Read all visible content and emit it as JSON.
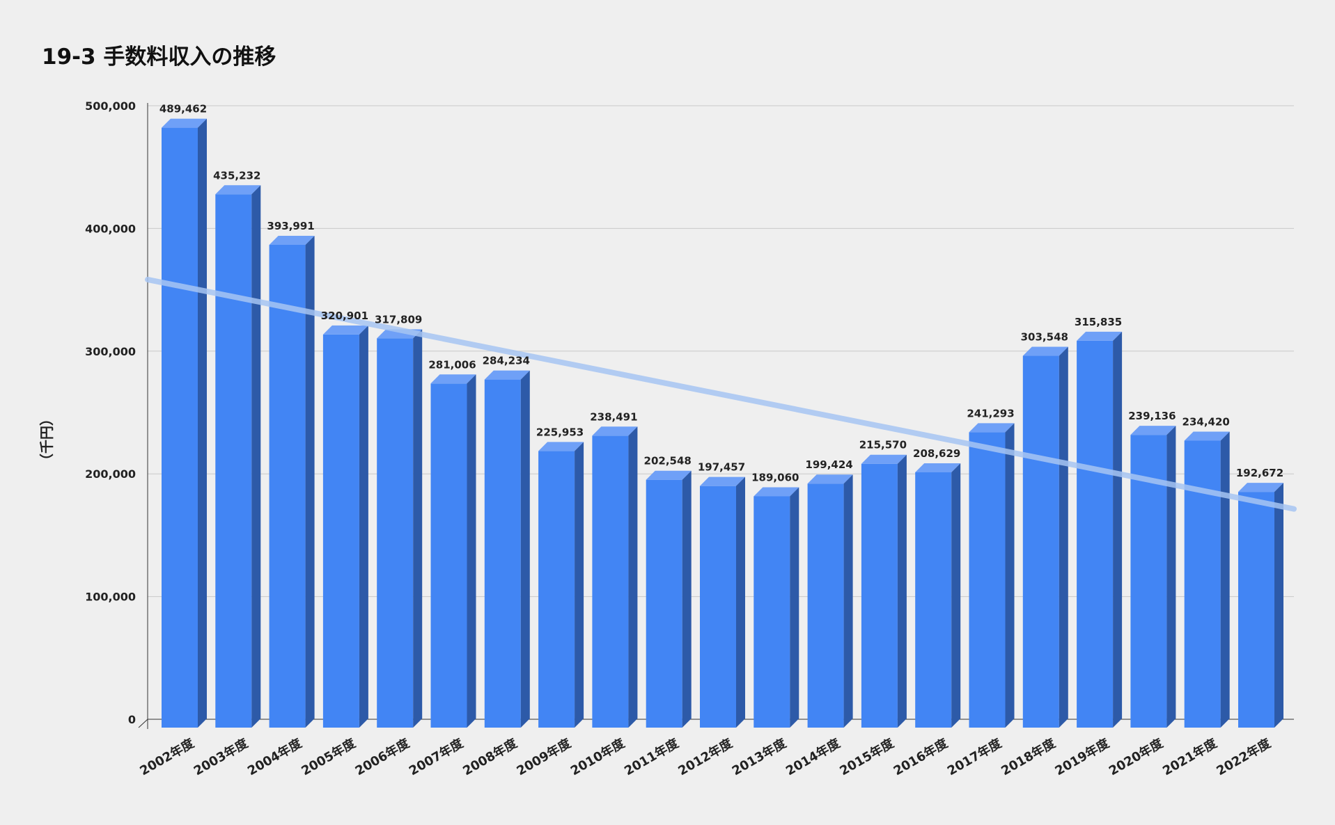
{
  "chart_data": {
    "type": "bar",
    "title": "19-3 手数料収入の推移",
    "ylabel": "（千円）",
    "xlabel": "",
    "ylim": [
      0,
      500000
    ],
    "yticks": [
      0,
      100000,
      200000,
      300000,
      400000,
      500000
    ],
    "ytick_labels": [
      "0",
      "100,000",
      "200,000",
      "300,000",
      "400,000",
      "500,000"
    ],
    "grid": true,
    "legend": "none",
    "style": "3d-bar",
    "trendline": "linear",
    "colors": {
      "bar_front": "#4285f4",
      "bar_side": "#2d5aa8",
      "bar_top": "#6fa0f7",
      "trendline": "#a6c4f2",
      "grid": "#c9c9c9",
      "axis": "#333333"
    },
    "categories": [
      "2002年度",
      "2003年度",
      "2004年度",
      "2005年度",
      "2006年度",
      "2007年度",
      "2008年度",
      "2009年度",
      "2010年度",
      "2011年度",
      "2012年度",
      "2013年度",
      "2014年度",
      "2015年度",
      "2016年度",
      "2017年度",
      "2018年度",
      "2019年度",
      "2020年度",
      "2021年度",
      "2022年度"
    ],
    "values": [
      489462,
      435232,
      393991,
      320901,
      317809,
      281006,
      284234,
      225953,
      238491,
      202548,
      197457,
      189060,
      199424,
      215570,
      208629,
      241293,
      303548,
      315835,
      239136,
      234420,
      192672
    ],
    "data_labels": [
      "489,462",
      "435,232",
      "393,991",
      "320,901",
      "317,809",
      "281,006",
      "284,234",
      "225,953",
      "238,491",
      "202,548",
      "197,457",
      "189,060",
      "199,424",
      "215,570",
      "208,629",
      "241,293",
      "303,548",
      "315,835",
      "239,136",
      "234,420",
      "192,672"
    ]
  }
}
